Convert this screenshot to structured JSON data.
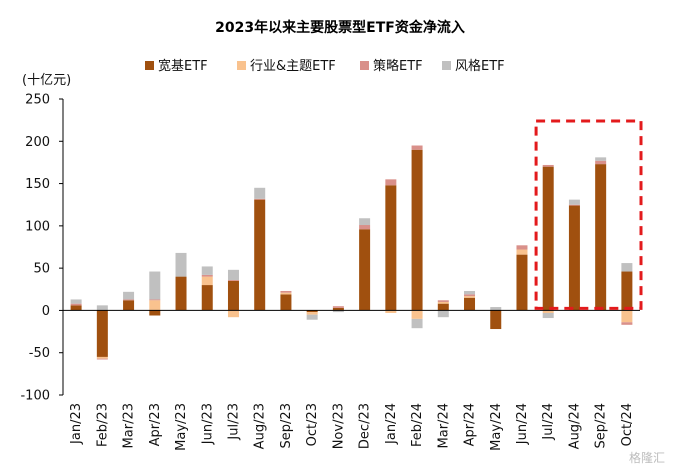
{
  "chart_data": {
    "type": "bar",
    "stacked": true,
    "title": "2023年以来主要股票型ETF资金净流入",
    "unit_label": "(十亿元)",
    "ylim": [
      -100,
      250
    ],
    "yticks": [
      250,
      200,
      150,
      100,
      50,
      0,
      -50,
      -100
    ],
    "categories": [
      "Jan/23",
      "Feb/23",
      "Mar/23",
      "Apr/23",
      "May/23",
      "Jun/23",
      "Jul/23",
      "Aug/23",
      "Sep/23",
      "Oct/23",
      "Nov/23",
      "Dec/23",
      "Jan/24",
      "Feb/24",
      "Mar/24",
      "Apr/24",
      "May/24",
      "Jun/24",
      "Jul/24",
      "Aug/24",
      "Sep/24",
      "Oct/24"
    ],
    "legend_position": "top-center",
    "series": [
      {
        "name": "宽基ETF",
        "color": "#A0500F",
        "values": [
          6,
          -55,
          12,
          -6,
          40,
          30,
          35,
          131,
          19,
          -2,
          3,
          96,
          148,
          190,
          8,
          15,
          -22,
          66,
          170,
          124,
          173,
          46
        ]
      },
      {
        "name": "行业&主题ETF",
        "color": "#F9C28E",
        "values": [
          0,
          -2,
          0,
          12,
          0,
          10,
          -8,
          0,
          2,
          -3,
          0,
          0,
          -3,
          -10,
          2,
          2,
          0,
          6,
          -3,
          0,
          0,
          -14
        ]
      },
      {
        "name": "策略ETF",
        "color": "#D9908A",
        "values": [
          2,
          -1,
          1,
          1,
          0,
          2,
          1,
          1,
          2,
          0,
          2,
          5,
          7,
          5,
          2,
          2,
          0,
          5,
          2,
          1,
          4,
          -3
        ]
      },
      {
        "name": "风格ETF",
        "color": "#C0C0C0",
        "values": [
          5,
          6,
          9,
          33,
          28,
          10,
          12,
          13,
          0,
          -6,
          -2,
          8,
          0,
          -11,
          -8,
          4,
          4,
          0,
          -6,
          6,
          4,
          10
        ]
      }
    ],
    "annotation": {
      "type": "dashed-box",
      "color": "#E31A1C",
      "from": "Jul/24",
      "to": "Oct/24"
    },
    "watermark": "格隆汇"
  }
}
